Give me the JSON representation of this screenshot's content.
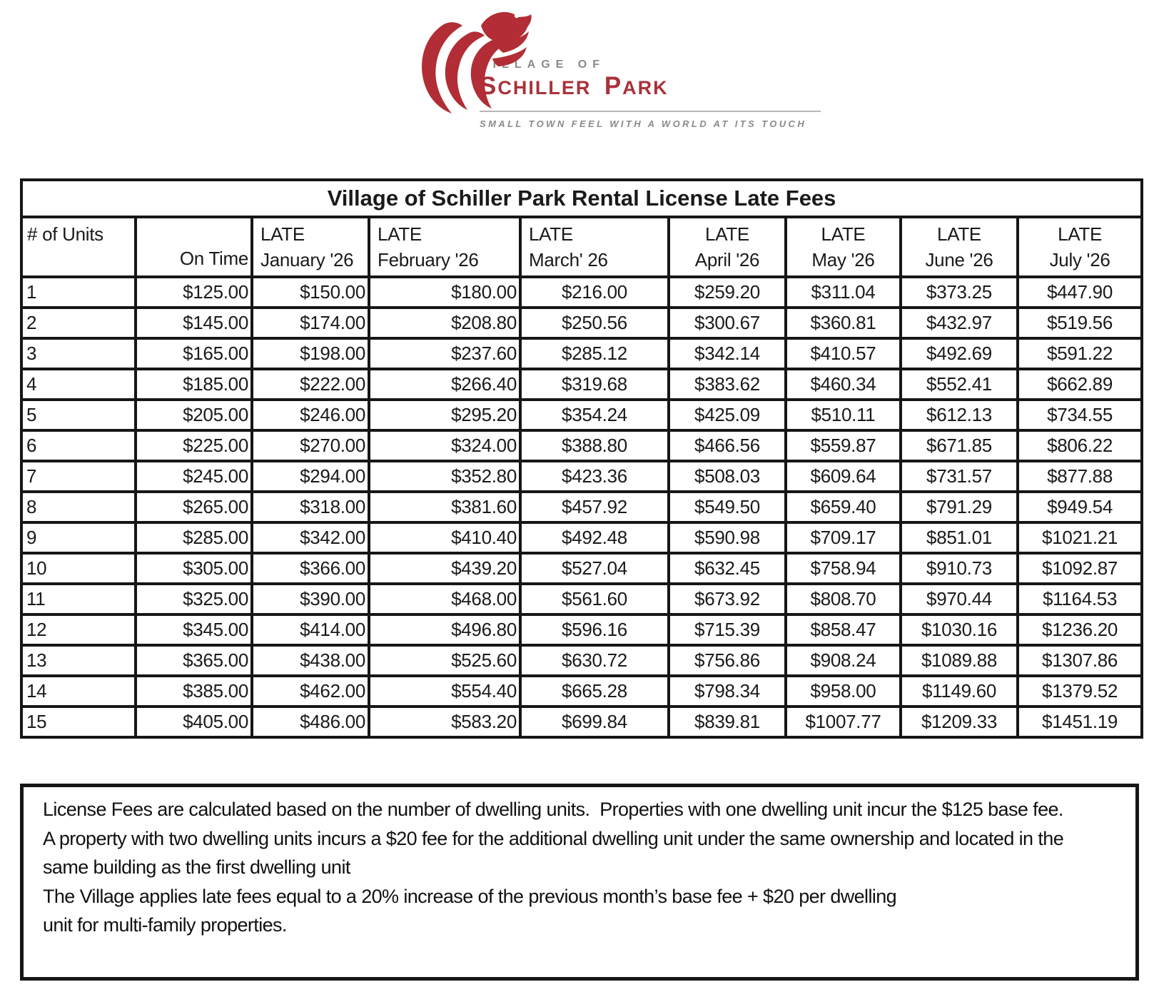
{
  "logo": {
    "village_of": "VILLAGE OF",
    "name_first": "SCHILLER",
    "name_second": "PARK",
    "tagline": "SMALL TOWN FEEL WITH A WORLD AT ITS TOUCH",
    "colors": {
      "bird_red": "#b22d35",
      "name_red": "#a8323a",
      "gray": "#8a8a8a"
    }
  },
  "table": {
    "title": "Village of Schiller Park Rental License Late Fees",
    "columns": [
      {
        "lines": [
          "# of Units"
        ]
      },
      {
        "lines": [
          "On Time"
        ]
      },
      {
        "lines": [
          "LATE",
          "January '26"
        ]
      },
      {
        "lines": [
          "LATE",
          "February '26"
        ]
      },
      {
        "lines": [
          "LATE",
          "March' 26"
        ]
      },
      {
        "lines": [
          "LATE",
          "April '26"
        ]
      },
      {
        "lines": [
          "LATE",
          "May '26"
        ]
      },
      {
        "lines": [
          "LATE",
          "June '26"
        ]
      },
      {
        "lines": [
          "LATE",
          "July '26"
        ]
      }
    ],
    "rows": [
      [
        "1",
        "$125.00",
        "$150.00",
        "$180.00",
        "$216.00",
        "$259.20",
        "$311.04",
        "$373.25",
        "$447.90"
      ],
      [
        "2",
        "$145.00",
        "$174.00",
        "$208.80",
        "$250.56",
        "$300.67",
        "$360.81",
        "$432.97",
        "$519.56"
      ],
      [
        "3",
        "$165.00",
        "$198.00",
        "$237.60",
        "$285.12",
        "$342.14",
        "$410.57",
        "$492.69",
        "$591.22"
      ],
      [
        "4",
        "$185.00",
        "$222.00",
        "$266.40",
        "$319.68",
        "$383.62",
        "$460.34",
        "$552.41",
        "$662.89"
      ],
      [
        "5",
        "$205.00",
        "$246.00",
        "$295.20",
        "$354.24",
        "$425.09",
        "$510.11",
        "$612.13",
        "$734.55"
      ],
      [
        "6",
        "$225.00",
        "$270.00",
        "$324.00",
        "$388.80",
        "$466.56",
        "$559.87",
        "$671.85",
        "$806.22"
      ],
      [
        "7",
        "$245.00",
        "$294.00",
        "$352.80",
        "$423.36",
        "$508.03",
        "$609.64",
        "$731.57",
        "$877.88"
      ],
      [
        "8",
        "$265.00",
        "$318.00",
        "$381.60",
        "$457.92",
        "$549.50",
        "$659.40",
        "$791.29",
        "$949.54"
      ],
      [
        "9",
        "$285.00",
        "$342.00",
        "$410.40",
        "$492.48",
        "$590.98",
        "$709.17",
        "$851.01",
        "$1021.21"
      ],
      [
        "10",
        "$305.00",
        "$366.00",
        "$439.20",
        "$527.04",
        "$632.45",
        "$758.94",
        "$910.73",
        "$1092.87"
      ],
      [
        "11",
        "$325.00",
        "$390.00",
        "$468.00",
        "$561.60",
        "$673.92",
        "$808.70",
        "$970.44",
        "$1164.53"
      ],
      [
        "12",
        "$345.00",
        "$414.00",
        "$496.80",
        "$596.16",
        "$715.39",
        "$858.47",
        "$1030.16",
        "$1236.20"
      ],
      [
        "13",
        "$365.00",
        "$438.00",
        "$525.60",
        "$630.72",
        "$756.86",
        "$908.24",
        "$1089.88",
        "$1307.86"
      ],
      [
        "14",
        "$385.00",
        "$462.00",
        "$554.40",
        "$665.28",
        "$798.34",
        "$958.00",
        "$1149.60",
        "$1379.52"
      ],
      [
        "15",
        "$405.00",
        "$486.00",
        "$583.20",
        "$699.84",
        "$839.81",
        "$1007.77",
        "$1209.33",
        "$1451.19"
      ]
    ]
  },
  "notes": {
    "lines": [
      "License Fees are calculated based on the number of dwelling units.  Properties with one dwelling unit incur the $125 base fee.",
      "A property with two dwelling units incurs a $20 fee for the additional dwelling unit under the same ownership and located in the",
      "same building as the first dwelling unit",
      "The Village applies late fees equal to a 20% increase of the previous month’s base fee + $20 per dwelling",
      "unit for multi-family properties."
    ]
  }
}
